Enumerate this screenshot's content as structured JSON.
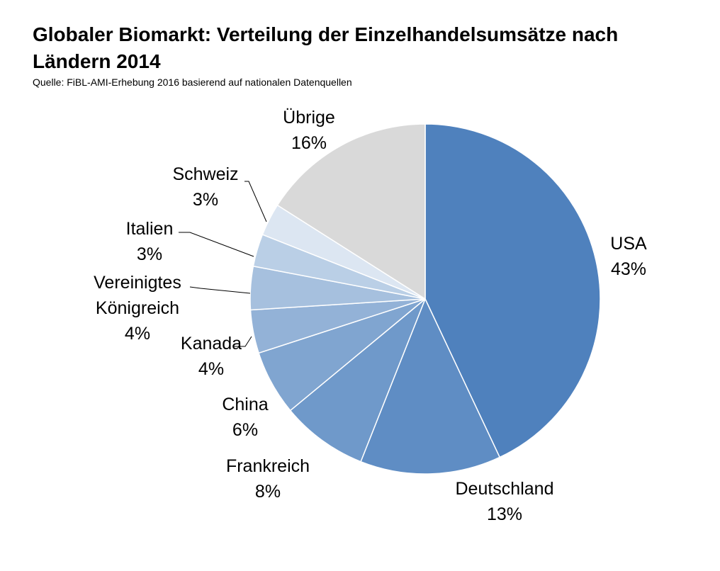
{
  "chart_data": {
    "type": "pie",
    "title": "Globaler Biomarkt: Verteilung der Einzelhandelsumsätze nach Ländern 2014",
    "subtitle": "Quelle: FiBL-AMI-Erhebung 2016 basierend auf nationalen Datenquellen",
    "slices": [
      {
        "label": "USA",
        "value": 43,
        "display": "43%",
        "color": "#4f81bd"
      },
      {
        "label": "Deutschland",
        "value": 13,
        "display": "13%",
        "color": "#5f8dc4"
      },
      {
        "label": "Frankreich",
        "value": 8,
        "display": "8%",
        "color": "#6f99ca"
      },
      {
        "label": "China",
        "value": 6,
        "display": "6%",
        "color": "#80a5d0"
      },
      {
        "label": "Kanada",
        "value": 4,
        "display": "4%",
        "color": "#93b2d7"
      },
      {
        "label": "Vereinigtes Königreich",
        "value": 4,
        "display": "4%",
        "color": "#a6c0de"
      },
      {
        "label": "Italien",
        "value": 3,
        "display": "3%",
        "color": "#bacfe6"
      },
      {
        "label": "Schweiz",
        "value": 3,
        "display": "3%",
        "color": "#dce6f2"
      },
      {
        "label": "Übrige",
        "value": 16,
        "display": "16%",
        "color": "#d9d9d9"
      }
    ]
  }
}
